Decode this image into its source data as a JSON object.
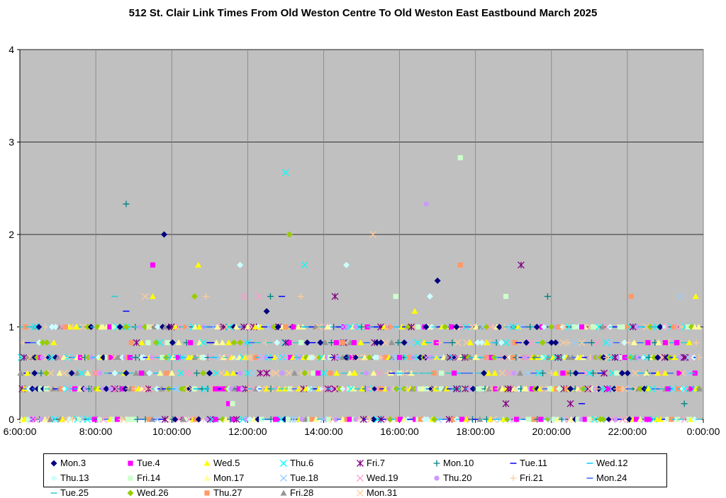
{
  "chart_data": {
    "type": "scatter",
    "title": "512 St. Clair Link Times From Old Weston Centre To Old Weston East Eastbound March 2025",
    "xlabel": "",
    "ylabel": "",
    "xlim": [
      6,
      24
    ],
    "ylim": [
      0,
      4
    ],
    "x_ticks": [
      "6:00:00",
      "8:00:00",
      "10:00:00",
      "12:00:00",
      "14:00:00",
      "16:00:00",
      "18:00:00",
      "20:00:00",
      "22:00:00",
      "0:00:00"
    ],
    "y_ticks": [
      "0",
      "1",
      "2",
      "3",
      "4"
    ],
    "grid": true,
    "legend_position": "bottom",
    "background_color": "#C0C0C0",
    "series": [
      {
        "name": "Mon.3",
        "color": "#000080",
        "marker": "diamond",
        "points": [
          [
            6.5,
            1
          ],
          [
            8.8,
            0.5
          ],
          [
            9.8,
            2
          ],
          [
            12.5,
            1.17
          ],
          [
            12.8,
            1
          ],
          [
            15.4,
            0.83
          ],
          [
            16.7,
            1
          ],
          [
            17.0,
            1.5
          ],
          [
            17.5,
            1
          ],
          [
            20.0,
            0.83
          ],
          [
            20.5,
            0.33
          ],
          [
            22.8,
            0.67
          ]
        ]
      },
      {
        "name": "Tue.4",
        "color": "#FF00FF",
        "marker": "square",
        "points": [
          [
            9.5,
            1.67
          ],
          [
            9.2,
            0.5
          ],
          [
            11.5,
            0.17
          ],
          [
            13.2,
            1
          ],
          [
            16.0,
            0.67
          ],
          [
            20.8,
            1
          ],
          [
            23.0,
            0.83
          ],
          [
            23.3,
            0.83
          ]
        ]
      },
      {
        "name": "Wed.5",
        "color": "#FFFF00",
        "marker": "triangle",
        "points": [
          [
            6.2,
            0.5
          ],
          [
            7.5,
            1
          ],
          [
            9.5,
            1.33
          ],
          [
            10.7,
            1.67
          ],
          [
            12.2,
            1
          ],
          [
            14.8,
            0.5
          ],
          [
            16.4,
            1.17
          ],
          [
            18.3,
            0.83
          ],
          [
            22.8,
            0.5
          ],
          [
            23.8,
            1.33
          ]
        ]
      },
      {
        "name": "Thu.6",
        "color": "#00FFFF",
        "marker": "x",
        "points": [
          [
            6.4,
            1
          ],
          [
            13.0,
            2.67
          ],
          [
            13.5,
            1.67
          ],
          [
            12.0,
            0.83
          ],
          [
            19.0,
            1
          ],
          [
            21.0,
            0.5
          ],
          [
            23.5,
            0.33
          ]
        ]
      },
      {
        "name": "Fri.7",
        "color": "#800080",
        "marker": "asterisk",
        "points": [
          [
            14.3,
            1.33
          ],
          [
            12.5,
            0.5
          ],
          [
            13.0,
            0.83
          ],
          [
            19.2,
            1.67
          ],
          [
            18.8,
            0.17
          ],
          [
            20.5,
            0.17
          ],
          [
            17.5,
            0.33
          ]
        ]
      },
      {
        "name": "Mon.10",
        "color": "#008080",
        "marker": "plus",
        "points": [
          [
            8.8,
            2.33
          ],
          [
            12.6,
            1.33
          ],
          [
            15.0,
            1
          ],
          [
            19.9,
            1.33
          ],
          [
            20.5,
            0.5
          ],
          [
            23.5,
            0.17
          ]
        ]
      },
      {
        "name": "Tue.11",
        "color": "#0000FF",
        "marker": "dash",
        "points": [
          [
            8.8,
            1.17
          ],
          [
            12.9,
            1.33
          ],
          [
            11.0,
            0.83
          ],
          [
            15.8,
            0.5
          ],
          [
            20.8,
            0.17
          ]
        ]
      },
      {
        "name": "Wed.12",
        "color": "#00CCFF",
        "marker": "dash",
        "points": [
          [
            8.5,
            1.33
          ],
          [
            13.5,
            1
          ],
          [
            16.0,
            0.5
          ],
          [
            18.5,
            0.83
          ]
        ]
      },
      {
        "name": "Thu.13",
        "color": "#CCFFFF",
        "marker": "diamond",
        "points": [
          [
            11.8,
            1.67
          ],
          [
            14.6,
            1.67
          ],
          [
            16.8,
            1.33
          ],
          [
            19.8,
            1
          ],
          [
            8.5,
            0.5
          ]
        ]
      },
      {
        "name": "Fri.14",
        "color": "#CCFFCC",
        "marker": "square",
        "points": [
          [
            17.6,
            2.83
          ],
          [
            15.9,
            1.33
          ],
          [
            18.8,
            1.33
          ],
          [
            11.6,
            0.17
          ],
          [
            21.8,
            1
          ]
        ]
      },
      {
        "name": "Mon.17",
        "color": "#FFFF99",
        "marker": "triangle",
        "points": [
          [
            11.2,
            1
          ],
          [
            14.1,
            1
          ],
          [
            18.0,
            0.67
          ],
          [
            22.5,
            0.5
          ]
        ]
      },
      {
        "name": "Tue.18",
        "color": "#99CCFF",
        "marker": "x",
        "points": [
          [
            6.3,
            0
          ],
          [
            14.5,
            1
          ],
          [
            17.2,
            1
          ],
          [
            20.0,
            1
          ],
          [
            23.4,
            1.33
          ]
        ]
      },
      {
        "name": "Wed.19",
        "color": "#FF99CC",
        "marker": "x",
        "points": [
          [
            11.9,
            1.33
          ],
          [
            12.3,
            1.33
          ],
          [
            8.0,
            0.5
          ],
          [
            16.7,
            0.67
          ]
        ]
      },
      {
        "name": "Thu.20",
        "color": "#CC99FF",
        "marker": "circle",
        "points": [
          [
            16.7,
            2.33
          ],
          [
            8.4,
            0.33
          ],
          [
            11.8,
            0.5
          ],
          [
            19.3,
            0.67
          ]
        ]
      },
      {
        "name": "Fri.21",
        "color": "#FFCC99",
        "marker": "plus",
        "points": [
          [
            15.2,
            0
          ],
          [
            13.4,
            1.33
          ],
          [
            10.9,
            1.33
          ],
          [
            21.2,
            0.33
          ]
        ]
      },
      {
        "name": "Mon.24",
        "color": "#3366FF",
        "marker": "dash",
        "points": [
          [
            12.1,
            0.83
          ],
          [
            16.2,
            0.5
          ],
          [
            19.6,
            0.67
          ]
        ]
      },
      {
        "name": "Tue.25",
        "color": "#33CCCC",
        "marker": "dash",
        "points": [
          [
            8.5,
            1.33
          ],
          [
            13.3,
            0.67
          ],
          [
            16.8,
            0.5
          ],
          [
            23.7,
            0.5
          ]
        ]
      },
      {
        "name": "Wed.26",
        "color": "#99CC00",
        "marker": "diamond",
        "points": [
          [
            13.1,
            2
          ],
          [
            10.6,
            1.33
          ],
          [
            8.8,
            1
          ],
          [
            11.8,
            0.83
          ],
          [
            13.5,
            0.5
          ],
          [
            20.0,
            1
          ],
          [
            17.2,
            1
          ],
          [
            6.6,
            0.83
          ]
        ]
      },
      {
        "name": "Thu.27",
        "color": "#FF9966",
        "marker": "square",
        "points": [
          [
            17.6,
            1.67
          ],
          [
            22.1,
            1.33
          ],
          [
            14.5,
            0.83
          ],
          [
            7.2,
            1
          ],
          [
            13.0,
            1
          ]
        ]
      },
      {
        "name": "Fri.28",
        "color": "#969696",
        "marker": "triangle",
        "points": [
          [
            23.9,
            0.33
          ],
          [
            6.8,
            0
          ],
          [
            10.3,
            0
          ]
        ]
      },
      {
        "name": "Mon.31",
        "color": "#FFCC99",
        "marker": "x",
        "points": [
          [
            9.3,
            1.33
          ],
          [
            15.3,
            2
          ],
          [
            20.8,
            0.83
          ],
          [
            21.5,
            0.67
          ]
        ]
      }
    ]
  }
}
